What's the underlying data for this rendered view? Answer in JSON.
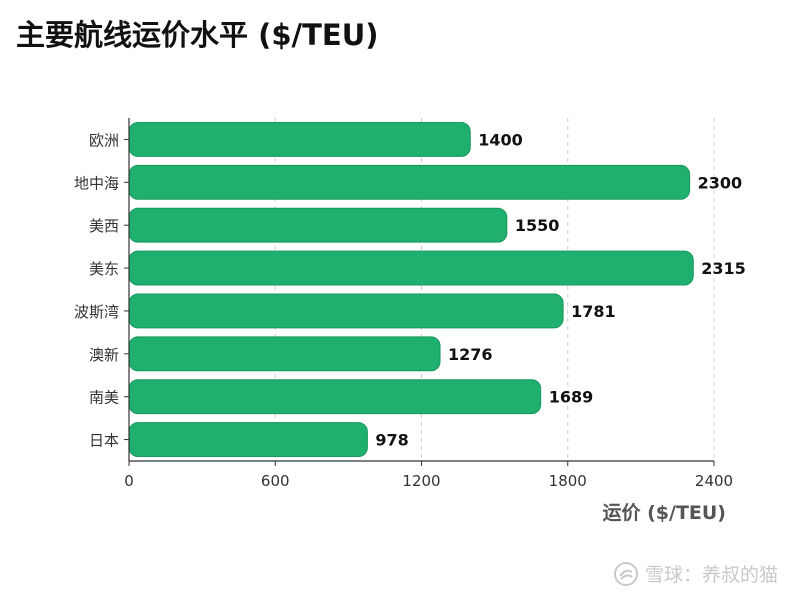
{
  "chart_data": {
    "type": "bar",
    "orientation": "horizontal",
    "title": "主要航线运价水平 ($/TEU)",
    "xlabel": "运价 ($/TEU)",
    "ylabel": "",
    "categories": [
      "欧洲",
      "地中海",
      "美西",
      "美东",
      "波斯湾",
      "澳新",
      "南美",
      "日本"
    ],
    "values": [
      1400,
      2300,
      1550,
      2315,
      1781,
      1276,
      1689,
      978
    ],
    "xlim": [
      0,
      2400
    ],
    "xticks": [
      0,
      600,
      1200,
      1800,
      2400
    ],
    "grid": "vertical-dashed",
    "bar_color": "#1faf6e"
  },
  "watermark": {
    "text": "雪球：养叔的猫"
  }
}
